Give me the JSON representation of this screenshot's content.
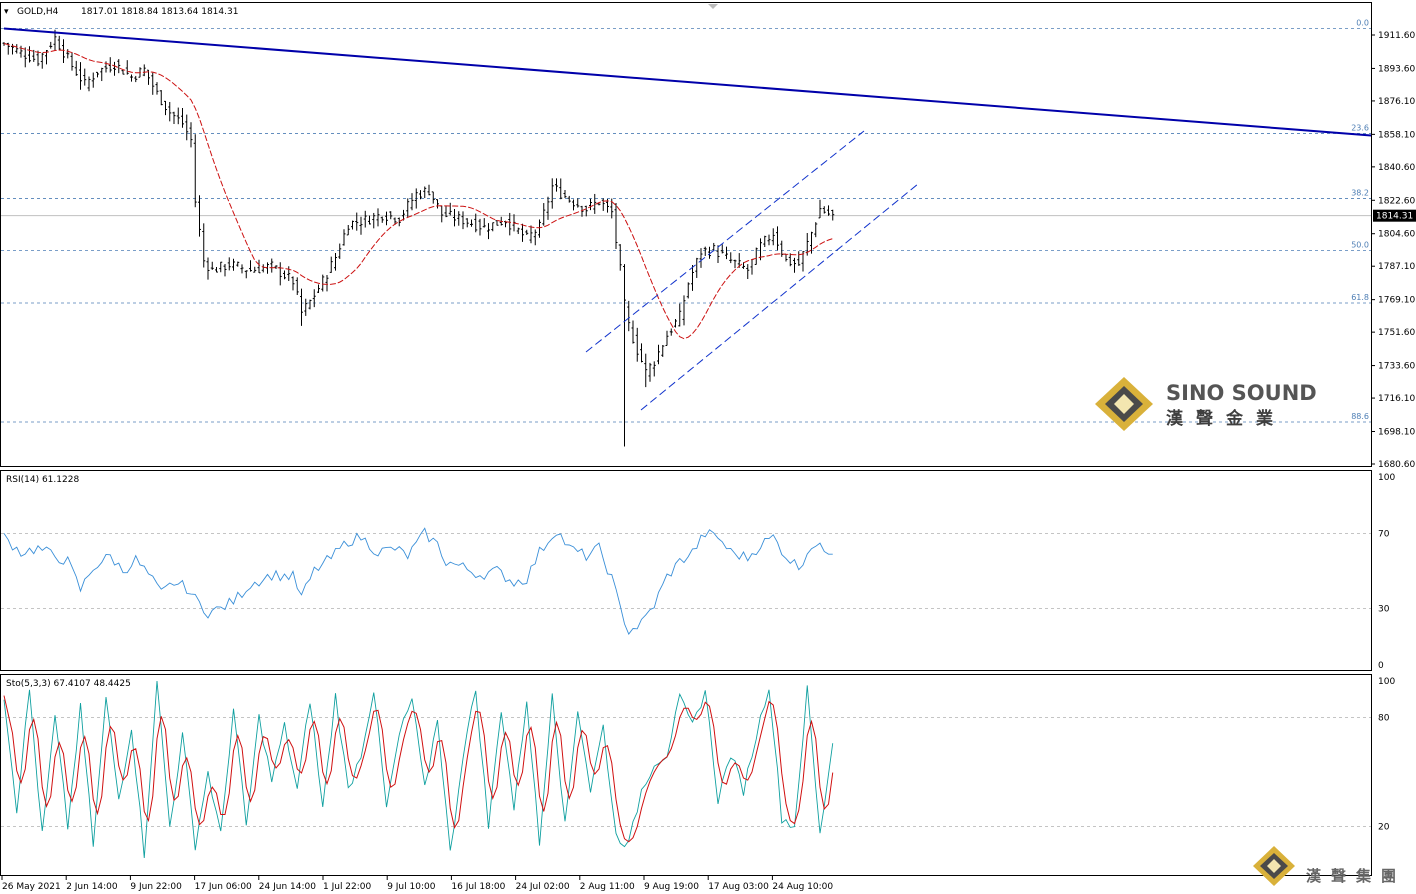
{
  "header": {
    "instrument": "GOLD,H4",
    "ohlc": "1817.01 1818.84 1813.64 1814.31"
  },
  "colors": {
    "trendline": "#0000aa",
    "channel": "#1133cc",
    "fib": "#4f7fb5",
    "ma": "#cc1111",
    "rsi": "#3a8fd8",
    "sto_main": "#10a0a0",
    "sto_signal": "#d01010",
    "grid": "#b0b0b0",
    "logo_gold": "#c9a227"
  },
  "chart_data": [
    {
      "type": "candlestick",
      "name": "main",
      "ylim": [
        1680.6,
        1920.6
      ],
      "price_ticks": [
        "1911.60",
        "1893.60",
        "1876.10",
        "1858.10",
        "1840.60",
        "1822.60",
        "1804.60",
        "1787.10",
        "1769.10",
        "1751.60",
        "1733.60",
        "1716.10",
        "1698.10",
        "1680.60"
      ],
      "current_price": "1814.31",
      "fib_levels": [
        {
          "label": "0.0",
          "price": 1915.1
        },
        {
          "label": "23.6",
          "price": 1858.6
        },
        {
          "label": "38.2",
          "price": 1823.6
        },
        {
          "label": "50.0",
          "price": 1795.5
        },
        {
          "label": "61.8",
          "price": 1767.3
        },
        {
          "label": "88.6",
          "price": 1703.2
        }
      ],
      "trendline": {
        "from": [
          0,
          1915.1
        ],
        "to": [
          318,
          1857.5
        ]
      },
      "channel_upper": {
        "from": [
          134,
          1774
        ],
        "to": [
          200,
          1859
        ]
      },
      "channel_lower": {
        "from": [
          148,
          1710
        ],
        "to": [
          212,
          1832
        ]
      },
      "x_labels": [
        "26 May 2021",
        "2 Jun 14:00",
        "9 Jun 22:00",
        "17 Jun 06:00",
        "24 Jun 14:00",
        "1 Jul 22:00",
        "9 Jul 10:00",
        "16 Jul 18:00",
        "24 Jul 02:00",
        "2 Aug 11:00",
        "9 Aug 19:00",
        "17 Aug 03:00",
        "24 Aug 10:00"
      ],
      "close_keypoints": [
        [
          0,
          1907
        ],
        [
          4,
          1902
        ],
        [
          8,
          1898
        ],
        [
          12,
          1910
        ],
        [
          16,
          1895
        ],
        [
          19,
          1885
        ],
        [
          22,
          1892
        ],
        [
          26,
          1896
        ],
        [
          30,
          1889
        ],
        [
          33,
          1893
        ],
        [
          36,
          1880
        ],
        [
          39,
          1870
        ],
        [
          42,
          1864
        ],
        [
          44,
          1855
        ],
        [
          45,
          1822
        ],
        [
          47,
          1790
        ],
        [
          49,
          1785
        ],
        [
          53,
          1788
        ],
        [
          58,
          1785
        ],
        [
          63,
          1787
        ],
        [
          68,
          1779
        ],
        [
          70,
          1762
        ],
        [
          72,
          1768
        ],
        [
          75,
          1779
        ],
        [
          78,
          1792
        ],
        [
          81,
          1810
        ],
        [
          85,
          1812
        ],
        [
          89,
          1815
        ],
        [
          93,
          1813
        ],
        [
          97,
          1826
        ],
        [
          100,
          1828
        ],
        [
          103,
          1815
        ],
        [
          108,
          1812
        ],
        [
          113,
          1808
        ],
        [
          118,
          1812
        ],
        [
          123,
          1802
        ],
        [
          126,
          1808
        ],
        [
          129,
          1830
        ],
        [
          133,
          1823
        ],
        [
          137,
          1818
        ],
        [
          140,
          1822
        ],
        [
          143,
          1816
        ],
        [
          145,
          1785
        ],
        [
          146,
          1766
        ],
        [
          147,
          1755
        ],
        [
          149,
          1742
        ],
        [
          151,
          1730
        ],
        [
          153,
          1736
        ],
        [
          156,
          1750
        ],
        [
          159,
          1760
        ],
        [
          161,
          1778
        ],
        [
          164,
          1795
        ],
        [
          167,
          1796
        ],
        [
          171,
          1790
        ],
        [
          175,
          1785
        ],
        [
          178,
          1798
        ],
        [
          181,
          1805
        ],
        [
          184,
          1790
        ],
        [
          187,
          1788
        ],
        [
          190,
          1805
        ],
        [
          192,
          1818
        ],
        [
          195,
          1814
        ]
      ],
      "wick_keypoints": [
        [
          146,
          1760,
          1690
        ],
        [
          151,
          1740,
          1722
        ],
        [
          70,
          1775,
          1755
        ]
      ]
    },
    {
      "type": "line",
      "name": "RSI(14)",
      "label": "RSI(14) 61.1228",
      "ylim": [
        0,
        100
      ],
      "ticks": [
        "100",
        "70",
        "30",
        "0"
      ],
      "levels": [
        70,
        30
      ],
      "keypoints": [
        [
          0,
          68
        ],
        [
          4,
          60
        ],
        [
          8,
          62
        ],
        [
          12,
          58
        ],
        [
          15,
          55
        ],
        [
          18,
          40
        ],
        [
          21,
          52
        ],
        [
          25,
          58
        ],
        [
          28,
          50
        ],
        [
          31,
          56
        ],
        [
          34,
          48
        ],
        [
          37,
          38
        ],
        [
          40,
          44
        ],
        [
          43,
          41
        ],
        [
          45,
          35
        ],
        [
          48,
          28
        ],
        [
          51,
          30
        ],
        [
          54,
          34
        ],
        [
          58,
          43
        ],
        [
          63,
          48
        ],
        [
          68,
          47
        ],
        [
          70,
          36
        ],
        [
          73,
          50
        ],
        [
          77,
          57
        ],
        [
          81,
          66
        ],
        [
          84,
          68
        ],
        [
          88,
          60
        ],
        [
          92,
          62
        ],
        [
          95,
          58
        ],
        [
          99,
          70
        ],
        [
          102,
          64
        ],
        [
          104,
          55
        ],
        [
          108,
          52
        ],
        [
          112,
          48
        ],
        [
          116,
          50
        ],
        [
          120,
          44
        ],
        [
          123,
          46
        ],
        [
          126,
          60
        ],
        [
          130,
          72
        ],
        [
          133,
          62
        ],
        [
          137,
          58
        ],
        [
          140,
          62
        ],
        [
          143,
          46
        ],
        [
          145,
          30
        ],
        [
          147,
          18
        ],
        [
          150,
          22
        ],
        [
          153,
          32
        ],
        [
          156,
          47
        ],
        [
          159,
          55
        ],
        [
          162,
          60
        ],
        [
          165,
          70
        ],
        [
          168,
          68
        ],
        [
          171,
          60
        ],
        [
          175,
          57
        ],
        [
          178,
          64
        ],
        [
          181,
          68
        ],
        [
          184,
          58
        ],
        [
          187,
          52
        ],
        [
          190,
          64
        ],
        [
          192,
          62
        ],
        [
          195,
          61
        ]
      ]
    },
    {
      "type": "line",
      "name": "Sto(5,3,3)",
      "label": "Sto(5,3,3) 67.4107 48.4425",
      "ylim": [
        0,
        100
      ],
      "ticks": [
        "100",
        "80",
        "20"
      ],
      "levels": [
        80,
        20
      ],
      "keypoints": [
        [
          0,
          92
        ],
        [
          3,
          30
        ],
        [
          6,
          95
        ],
        [
          9,
          15
        ],
        [
          12,
          80
        ],
        [
          15,
          20
        ],
        [
          18,
          85
        ],
        [
          21,
          10
        ],
        [
          24,
          90
        ],
        [
          27,
          35
        ],
        [
          30,
          75
        ],
        [
          33,
          5
        ],
        [
          36,
          100
        ],
        [
          39,
          20
        ],
        [
          42,
          70
        ],
        [
          45,
          10
        ],
        [
          48,
          50
        ],
        [
          51,
          15
        ],
        [
          54,
          85
        ],
        [
          57,
          20
        ],
        [
          60,
          80
        ],
        [
          63,
          45
        ],
        [
          66,
          75
        ],
        [
          69,
          40
        ],
        [
          72,
          90
        ],
        [
          75,
          30
        ],
        [
          78,
          92
        ],
        [
          81,
          40
        ],
        [
          84,
          60
        ],
        [
          87,
          95
        ],
        [
          90,
          30
        ],
        [
          93,
          70
        ],
        [
          96,
          90
        ],
        [
          99,
          40
        ],
        [
          102,
          80
        ],
        [
          105,
          5
        ],
        [
          108,
          60
        ],
        [
          111,
          95
        ],
        [
          114,
          20
        ],
        [
          117,
          85
        ],
        [
          120,
          30
        ],
        [
          123,
          90
        ],
        [
          126,
          10
        ],
        [
          129,
          95
        ],
        [
          132,
          20
        ],
        [
          135,
          85
        ],
        [
          138,
          40
        ],
        [
          141,
          75
        ],
        [
          144,
          15
        ],
        [
          147,
          10
        ],
        [
          150,
          40
        ],
        [
          153,
          55
        ],
        [
          156,
          60
        ],
        [
          159,
          90
        ],
        [
          162,
          75
        ],
        [
          165,
          95
        ],
        [
          168,
          35
        ],
        [
          171,
          60
        ],
        [
          174,
          40
        ],
        [
          177,
          70
        ],
        [
          180,
          98
        ],
        [
          183,
          25
        ],
        [
          186,
          20
        ],
        [
          189,
          95
        ],
        [
          192,
          15
        ],
        [
          195,
          67
        ]
      ]
    }
  ],
  "watermark": {
    "brand_en": "SINO SOUND",
    "brand_zh": "漢聲金業",
    "footer_zh": "漢聲集團"
  }
}
